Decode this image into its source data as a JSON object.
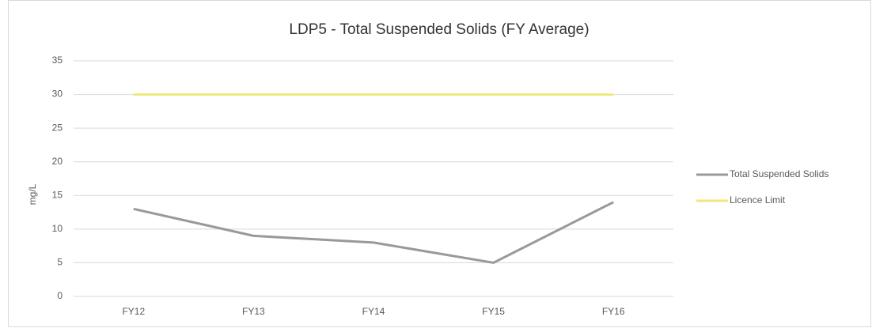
{
  "chart_data": {
    "type": "line",
    "title": "LDP5 - Total Suspended Solids (FY Average)",
    "y_label": "mg/L",
    "categories": [
      "FY12",
      "FY13",
      "FY14",
      "FY15",
      "FY16"
    ],
    "series": [
      {
        "name": "Total Suspended Solids",
        "color": "#999999",
        "values": [
          13,
          9,
          8,
          5,
          14
        ]
      },
      {
        "name": "Licence Limit",
        "color": "#f0e87a",
        "values": [
          30,
          30,
          30,
          30,
          30
        ]
      }
    ],
    "ylim": [
      0,
      35
    ],
    "yticks": [
      0,
      5,
      10,
      15,
      20,
      25,
      30,
      35
    ],
    "grid": true,
    "legend": "right"
  }
}
